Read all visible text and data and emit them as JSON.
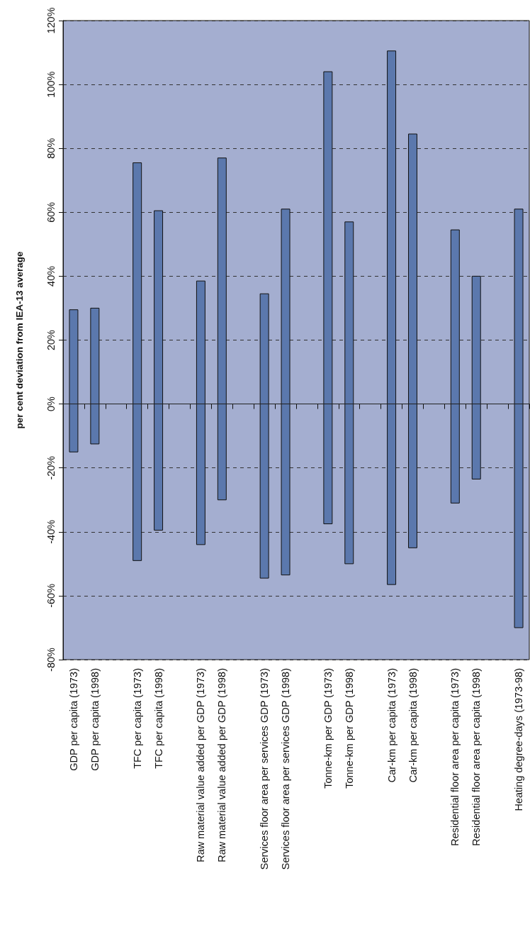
{
  "chart_data": {
    "type": "bar",
    "ylabel": "per cent deviation from IEA-13 average",
    "categories": [
      "GDP per capita (1973)",
      "GDP per capita (1998)",
      null,
      "TFC per capita (1973)",
      "TFC per capita (1998)",
      null,
      "Raw material value added per GDP (1973)",
      "Raw material value added per GDP (1998)",
      null,
      "Services floor area per services GDP (1973)",
      "Services floor area per services GDP (1998)",
      null,
      "Tonne-km per GDP (1973)",
      "Tonne-km per GDP (1998)",
      null,
      "Car-km per capita (1973)",
      "Car-km per capita (1998)",
      null,
      "Residential floor area per capita (1973)",
      "Residential floor area per capita (1998)",
      null,
      "Heating degree-days (1973-98)"
    ],
    "base": [
      -15,
      -12.5,
      null,
      -49,
      -39.5,
      null,
      -44,
      -30,
      null,
      -54.5,
      -53.5,
      null,
      -37.5,
      -50,
      null,
      -56.5,
      -45,
      null,
      -31,
      -23.5,
      null,
      -70
    ],
    "values": [
      44.5,
      42.5,
      null,
      124.5,
      100,
      null,
      82.5,
      107,
      null,
      89,
      114.5,
      null,
      141.5,
      107,
      null,
      167,
      129.5,
      null,
      85.5,
      63.5,
      null,
      131
    ],
    "color": "#5b78ad",
    "ylim": [
      -80,
      120
    ],
    "yticks": [
      {
        "value": -80,
        "label": "-80%"
      },
      {
        "value": -60,
        "label": "-60%"
      },
      {
        "value": -40,
        "label": "-40%"
      },
      {
        "value": -20,
        "label": "-20%"
      },
      {
        "value": 0,
        "label": "0%"
      },
      {
        "value": 20,
        "label": "20%"
      },
      {
        "value": 40,
        "label": "40%"
      },
      {
        "value": 60,
        "label": "60%"
      },
      {
        "value": 80,
        "label": "80%"
      },
      {
        "value": 100,
        "label": "100%"
      },
      {
        "value": 120,
        "label": "120%"
      }
    ],
    "grid": "y",
    "ref_lines": [
      {
        "axis": "y",
        "value": 0,
        "color": "#222222",
        "line_style": "solid"
      }
    ]
  }
}
